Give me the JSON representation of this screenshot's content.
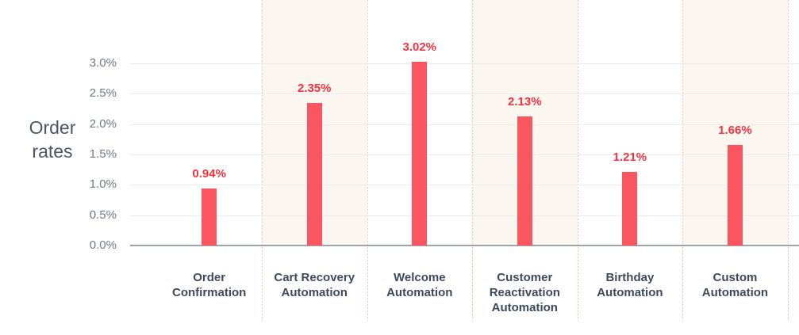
{
  "chart_data": {
    "type": "bar",
    "title": "",
    "xlabel": "",
    "ylabel": "Order rates",
    "categories": [
      "Order Confirmation",
      "Cart Recovery Automation",
      "Welcome Automation",
      "Customer Reactivation Automation",
      "Birthday Automation",
      "Custom Automation"
    ],
    "values": [
      0.94,
      2.35,
      3.02,
      2.13,
      1.21,
      1.66
    ],
    "value_labels": [
      "0.94%",
      "2.35%",
      "3.02%",
      "2.13%",
      "1.21%",
      "1.66%"
    ],
    "y_ticks": [
      "3.0%",
      "2.5%",
      "2.0%",
      "1.5%",
      "1.0%",
      "0.5%",
      "0.0%"
    ],
    "y_tick_values": [
      3.0,
      2.5,
      2.0,
      1.5,
      1.0,
      0.5,
      0.0
    ],
    "ylim": [
      0,
      3.5
    ],
    "grid": "horizontal",
    "legend": "none",
    "shaded_bands": [
      1,
      3,
      5
    ],
    "colors": {
      "bar": "#f9565f",
      "value_label": "#f5333f",
      "band_tint": "#fbf6f0",
      "separator": "#e8c7a5",
      "gridline": "#e9ebee",
      "baseline": "#9da4ac",
      "tick_label": "#6f7883",
      "category_label": "#3e4a59",
      "axis_title": "#4d5664"
    }
  }
}
